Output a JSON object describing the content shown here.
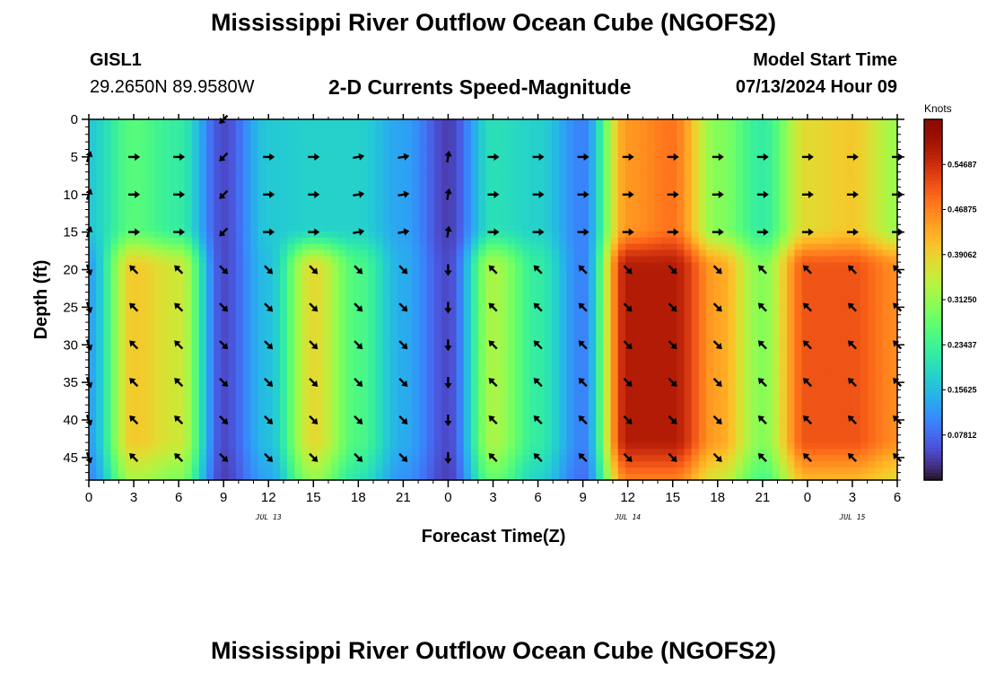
{
  "page": {
    "title": "Mississippi River Outflow Ocean Cube (NGOFS2)",
    "title_repeat": "Mississippi River Outflow Ocean Cube (NGOFS2)",
    "station_id": "GISL1",
    "station_coords": "29.2650N  89.9580W",
    "model_start_label": "Model Start Time",
    "model_start_value": "07/13/2024 Hour 09"
  },
  "chart_data": {
    "type": "heatmap",
    "title": "2-D Currents Speed-Magnitude",
    "xlabel": "Forecast Time(Z)",
    "ylabel": "Depth (ft)",
    "x_ticks": [
      "0",
      "3",
      "6",
      "9",
      "12",
      "15",
      "18",
      "21",
      "0",
      "3",
      "6",
      "9",
      "12",
      "15",
      "18",
      "21",
      "0",
      "3",
      "6"
    ],
    "x_hours_range": [
      0,
      54
    ],
    "date_labels": [
      {
        "label": "JUL 13",
        "hour": 12
      },
      {
        "label": "JUL 14",
        "hour": 36
      },
      {
        "label": "JUL 15",
        "hour": 51
      }
    ],
    "y_ticks": [
      0,
      5,
      10,
      15,
      20,
      25,
      30,
      35,
      40,
      45
    ],
    "ylim": [
      0,
      48
    ],
    "colorbar": {
      "unit_label": "Knots",
      "range": [
        0,
        0.625
      ],
      "tick_labels": [
        "0.54687",
        "0.46875",
        "0.39062",
        "0.31250",
        "0.23437",
        "0.15625",
        "0.07812"
      ],
      "tick_values": [
        0.54687,
        0.46875,
        0.39062,
        0.3125,
        0.23437,
        0.15625,
        0.07812
      ]
    },
    "arrow_times": [
      0,
      3,
      6,
      9,
      12,
      15,
      18,
      21,
      24,
      27,
      30,
      33,
      36,
      39,
      42,
      45,
      48,
      51,
      54
    ],
    "arrow_depths": [
      0,
      5,
      10,
      15,
      20,
      25,
      30,
      35,
      40,
      45
    ],
    "speed_by_time_upper_knots": [
      0.17,
      0.26,
      0.22,
      0.05,
      0.17,
      0.18,
      0.18,
      0.13,
      0.04,
      0.2,
      0.18,
      0.1,
      0.45,
      0.48,
      0.3,
      0.22,
      0.38,
      0.4,
      0.32
    ],
    "speed_by_time_lower_knots": [
      0.13,
      0.4,
      0.36,
      0.05,
      0.16,
      0.38,
      0.25,
      0.14,
      0.05,
      0.33,
      0.22,
      0.1,
      0.57,
      0.57,
      0.44,
      0.3,
      0.51,
      0.51,
      0.46
    ],
    "arrow_direction_upper_deg": [
      20,
      90,
      90,
      225,
      90,
      90,
      80,
      80,
      10,
      90,
      90,
      90,
      90,
      90,
      90,
      90,
      90,
      90,
      90
    ],
    "arrow_direction_lower_deg": [
      160,
      315,
      315,
      135,
      135,
      135,
      135,
      135,
      180,
      315,
      315,
      315,
      135,
      135,
      135,
      315,
      315,
      315,
      315
    ]
  }
}
